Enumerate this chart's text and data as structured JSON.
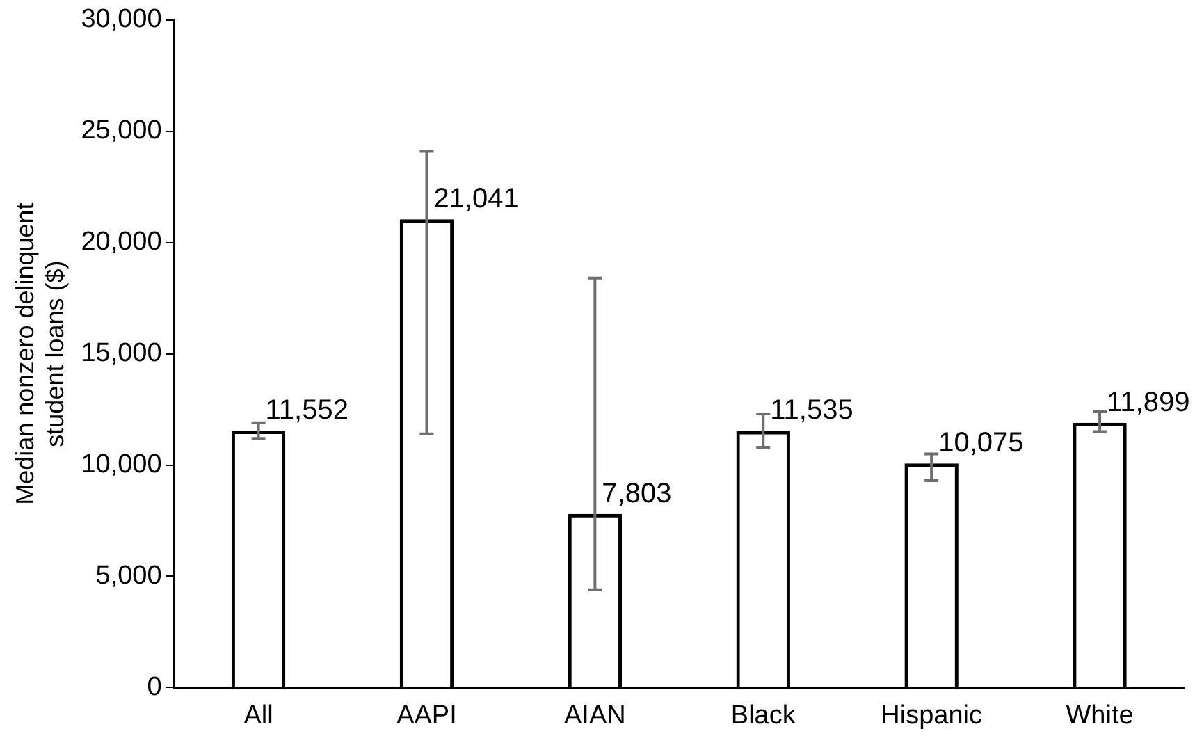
{
  "chart_data": {
    "type": "bar",
    "ylabel": "Median nonzero delinquent student loans ($)",
    "categories": [
      "All",
      "AAPI",
      "AIAN",
      "Black",
      "Hispanic",
      "White"
    ],
    "values": [
      11552,
      21041,
      7803,
      11535,
      10075,
      11899
    ],
    "errors": [
      [
        11200,
        11900
      ],
      [
        11400,
        24100
      ],
      [
        4400,
        18400
      ],
      [
        10800,
        12300
      ],
      [
        9300,
        10500
      ],
      [
        11500,
        12400
      ]
    ],
    "value_labels": [
      "11,552",
      "21,041",
      "7,803",
      "11,535",
      "10,075",
      "11,899"
    ],
    "color": "#000000",
    "ylim": [
      0,
      30000
    ],
    "yticks": [
      {
        "value": 0,
        "label": "0"
      },
      {
        "value": 5000,
        "label": "5,000"
      },
      {
        "value": 10000,
        "label": "10,000"
      },
      {
        "value": 15000,
        "label": "15,000"
      },
      {
        "value": 20000,
        "label": "20,000"
      },
      {
        "value": 25000,
        "label": "25,000"
      },
      {
        "value": 30000,
        "label": "30,000"
      }
    ],
    "grid": false
  }
}
